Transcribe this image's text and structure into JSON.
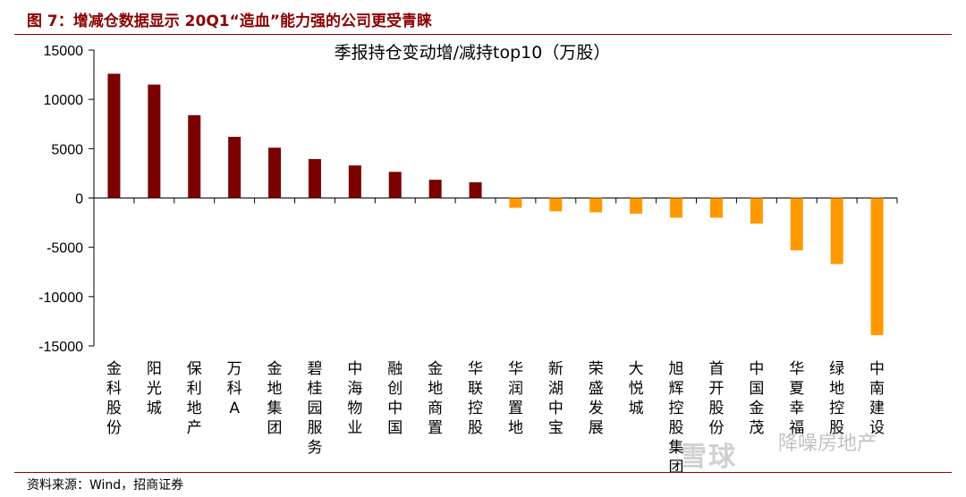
{
  "figure": {
    "title": "图 7：增减仓数据显示 20Q1“造血”能力强的公司更受青睐",
    "source": "资料来源：Wind，招商证券",
    "watermark_text": "雪球",
    "watermark_account": "降噪房地产"
  },
  "colors": {
    "increase": "#7B0000",
    "decrease": "#FF9900",
    "title": "#8B0000"
  },
  "chart_data": {
    "type": "bar",
    "title": "季报持仓变动增/减持top10（万股）",
    "xlabel": "",
    "ylabel": "",
    "ylim": [
      -15000,
      15000
    ],
    "yticks": [
      15000,
      10000,
      5000,
      0,
      -5000,
      -10000,
      -15000
    ],
    "grid": false,
    "categories": [
      "金科股份",
      "阳光城",
      "保利地产",
      "万科A",
      "金地集团",
      "碧桂园服务",
      "中海物业",
      "融创中国",
      "金地商置",
      "华联控股",
      "华润置地",
      "新湖中宝",
      "荣盛发展",
      "大悦城",
      "旭辉控股集团",
      "首开股份",
      "中国金茂",
      "华夏幸福",
      "绿地控股",
      "中南建设"
    ],
    "values": [
      12600,
      11500,
      8400,
      6200,
      5100,
      3950,
      3300,
      2650,
      1850,
      1600,
      -1000,
      -1350,
      -1450,
      -1600,
      -2000,
      -2000,
      -2600,
      -5300,
      -6700,
      -13900
    ]
  }
}
